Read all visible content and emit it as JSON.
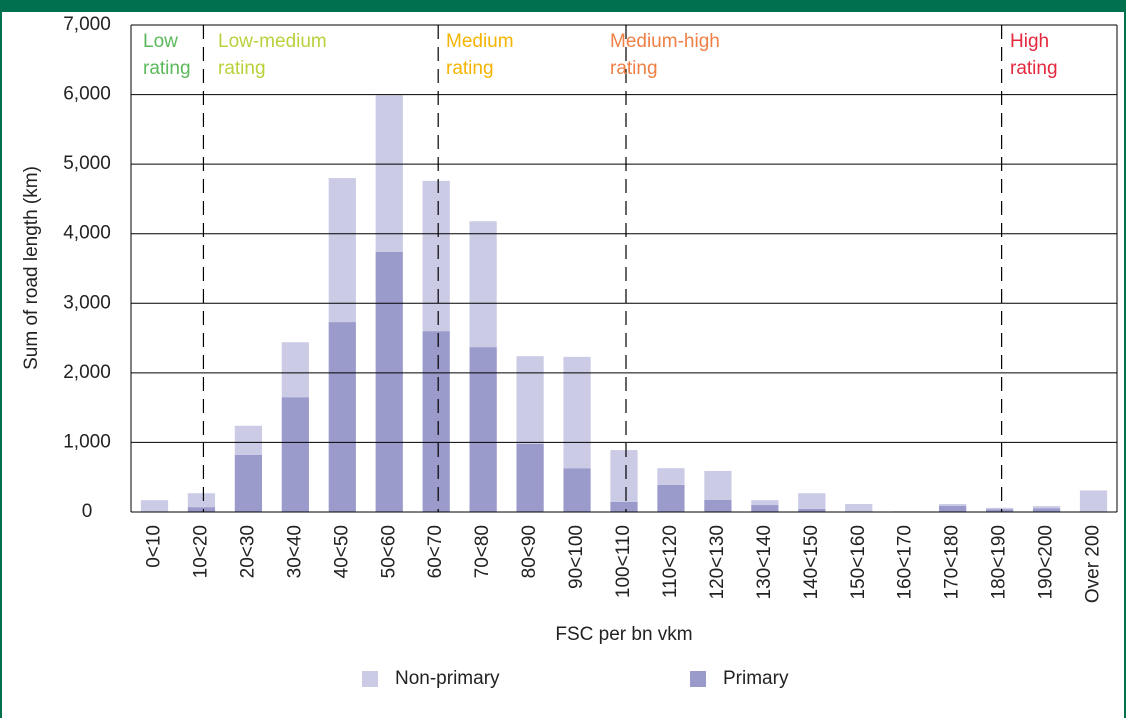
{
  "chart_data": {
    "type": "bar",
    "stacked": true,
    "y_label": "Sum of road length (km)",
    "x_label": "FSC per bn vkm",
    "categories": [
      "0<10",
      "10<20",
      "20<30",
      "30<40",
      "40<50",
      "50<60",
      "60<70",
      "70<80",
      "80<90",
      "90<100",
      "100<110",
      "110<120",
      "120<130",
      "130<140",
      "140<150",
      "150<160",
      "160<170",
      "170<180",
      "180<190",
      "190<200",
      "Over 200"
    ],
    "series": [
      {
        "name": "Non-primary",
        "color": "#cbcbe6",
        "values": [
          160,
          200,
          420,
          790,
          2070,
          2250,
          2160,
          1810,
          1260,
          1600,
          745,
          240,
          415,
          70,
          225,
          110,
          5,
          25,
          20,
          30,
          300
        ]
      },
      {
        "name": "Primary",
        "color": "#9a9acb",
        "values": [
          10,
          70,
          820,
          1650,
          2730,
          3740,
          2600,
          2370,
          980,
          630,
          145,
          390,
          175,
          100,
          45,
          5,
          5,
          90,
          40,
          55,
          10
        ]
      }
    ],
    "ylim": [
      0,
      7000
    ],
    "yticks": [
      0,
      {
        "value": 1000,
        "label": "1,000"
      },
      {
        "value": 2000,
        "label": "2,000"
      },
      {
        "value": 3000,
        "label": "3,000"
      },
      {
        "value": 4000,
        "label": "4,000"
      },
      {
        "value": 5000,
        "label": "5,000"
      },
      {
        "value": 6000,
        "label": "6,000"
      },
      {
        "value": 7000,
        "label": "7,000"
      }
    ],
    "grid": true,
    "rating_bands": [
      {
        "lines": [
          "Low",
          "rating"
        ],
        "color": "#5cb85c"
      },
      {
        "lines": [
          "Low-medium",
          "rating"
        ],
        "color": "#b8d23c"
      },
      {
        "lines": [
          "Medium",
          "rating"
        ],
        "color": "#f4b400"
      },
      {
        "lines": [
          "Medium-high",
          "rating"
        ],
        "color": "#ef7f45"
      },
      {
        "lines": [
          "High",
          "rating"
        ],
        "color": "#e5283c"
      }
    ]
  }
}
